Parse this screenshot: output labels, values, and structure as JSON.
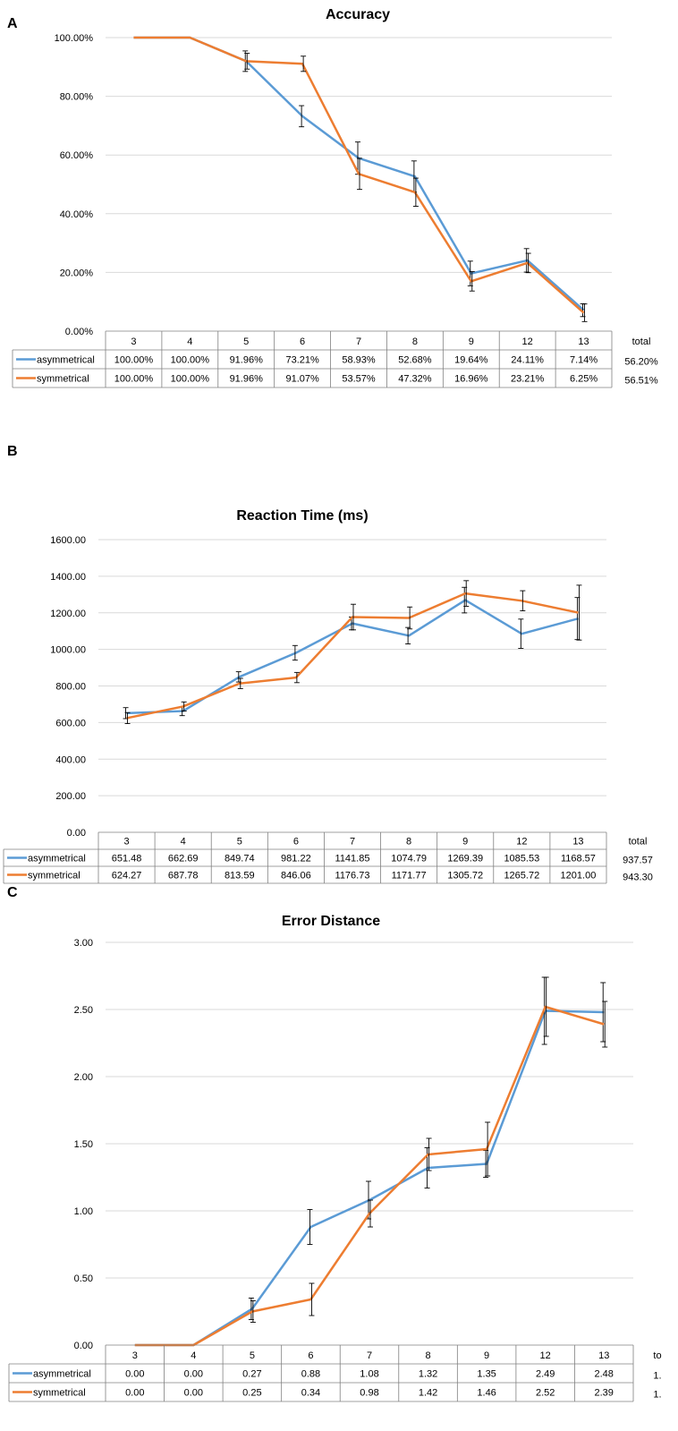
{
  "chart_data": [
    {
      "type": "line",
      "panel": "A",
      "title": "Accuracy",
      "categories": [
        "3",
        "4",
        "5",
        "6",
        "7",
        "8",
        "9",
        "12",
        "13"
      ],
      "total_label": "total",
      "ylim": [
        0,
        100
      ],
      "yticks": [
        "0.00%",
        "20.00%",
        "40.00%",
        "60.00%",
        "80.00%",
        "100.00%"
      ],
      "grid": true,
      "series": [
        {
          "name": "asymmetrical",
          "color": "#5b9bd5",
          "values": [
            100,
            100,
            91.96,
            73.21,
            58.93,
            52.68,
            19.64,
            24.11,
            7.14
          ],
          "labels": [
            "100.00%",
            "100.00%",
            "91.96%",
            "73.21%",
            "58.93%",
            "52.68%",
            "19.64%",
            "24.11%",
            "7.14%"
          ],
          "total": "56.20%",
          "errors": [
            0,
            0,
            3.5,
            3.6,
            5.5,
            5.3,
            4.2,
            4.0,
            2.2
          ]
        },
        {
          "name": "symmetrical",
          "color": "#ed7d31",
          "values": [
            100,
            100,
            91.96,
            91.07,
            53.57,
            47.32,
            16.96,
            23.21,
            6.25
          ],
          "labels": [
            "100.00%",
            "100.00%",
            "91.96%",
            "91.07%",
            "53.57%",
            "47.32%",
            "16.96%",
            "23.21%",
            "6.25%"
          ],
          "total": "56.51%",
          "errors": [
            0,
            0,
            2.7,
            2.6,
            5.3,
            4.8,
            3.3,
            3.3,
            3.0
          ]
        }
      ]
    },
    {
      "type": "line",
      "panel": "B",
      "title": "Reaction Time (ms)",
      "categories": [
        "3",
        "4",
        "5",
        "6",
        "7",
        "8",
        "9",
        "12",
        "13"
      ],
      "total_label": "total",
      "ylim": [
        0,
        1600
      ],
      "yticks": [
        "0.00",
        "200.00",
        "400.00",
        "600.00",
        "800.00",
        "1000.00",
        "1200.00",
        "1400.00",
        "1600.00"
      ],
      "grid": true,
      "series": [
        {
          "name": "asymmetrical",
          "color": "#5b9bd5",
          "values": [
            651.48,
            662.69,
            849.74,
            981.22,
            1141.85,
            1074.79,
            1269.39,
            1085.53,
            1168.57
          ],
          "labels": [
            "651.48",
            "662.69",
            "849.74",
            "981.22",
            "1141.85",
            "1074.79",
            "1269.39",
            "1085.53",
            "1168.57"
          ],
          "total": "937.57",
          "errors": [
            30,
            25,
            28,
            40,
            35,
            45,
            70,
            80,
            115
          ]
        },
        {
          "name": "symmetrical",
          "color": "#ed7d31",
          "values": [
            624.27,
            687.78,
            813.59,
            846.06,
            1176.73,
            1171.77,
            1305.72,
            1265.72,
            1201.0
          ],
          "labels": [
            "624.27",
            "687.78",
            "813.59",
            "846.06",
            "1176.73",
            "1171.77",
            "1305.72",
            "1265.72",
            "1201.00"
          ],
          "total": "943.30",
          "errors": [
            30,
            25,
            28,
            28,
            70,
            60,
            70,
            55,
            150
          ]
        }
      ]
    },
    {
      "type": "line",
      "panel": "C",
      "title": "Error Distance",
      "categories": [
        "3",
        "4",
        "5",
        "6",
        "7",
        "8",
        "9",
        "12",
        "13"
      ],
      "total_label": "to",
      "ylim": [
        0,
        3
      ],
      "yticks": [
        "0.00",
        "0.50",
        "1.00",
        "1.50",
        "2.00",
        "2.50",
        "3.00"
      ],
      "grid": true,
      "series": [
        {
          "name": "asymmetrical",
          "color": "#5b9bd5",
          "values": [
            0,
            0,
            0.27,
            0.88,
            1.08,
            1.32,
            1.35,
            2.49,
            2.48
          ],
          "labels": [
            "0.00",
            "0.00",
            "0.27",
            "0.88",
            "1.08",
            "1.32",
            "1.35",
            "2.49",
            "2.48"
          ],
          "total": "1.",
          "errors": [
            0,
            0,
            0.08,
            0.13,
            0.14,
            0.15,
            0.1,
            0.25,
            0.22
          ]
        },
        {
          "name": "symmetrical",
          "color": "#ed7d31",
          "values": [
            0,
            0,
            0.25,
            0.34,
            0.98,
            1.42,
            1.46,
            2.52,
            2.39
          ],
          "labels": [
            "0.00",
            "0.00",
            "0.25",
            "0.34",
            "0.98",
            "1.42",
            "1.46",
            "2.52",
            "2.39"
          ],
          "total": "1.",
          "errors": [
            0,
            0,
            0.08,
            0.12,
            0.1,
            0.12,
            0.2,
            0.22,
            0.17
          ]
        }
      ]
    }
  ]
}
